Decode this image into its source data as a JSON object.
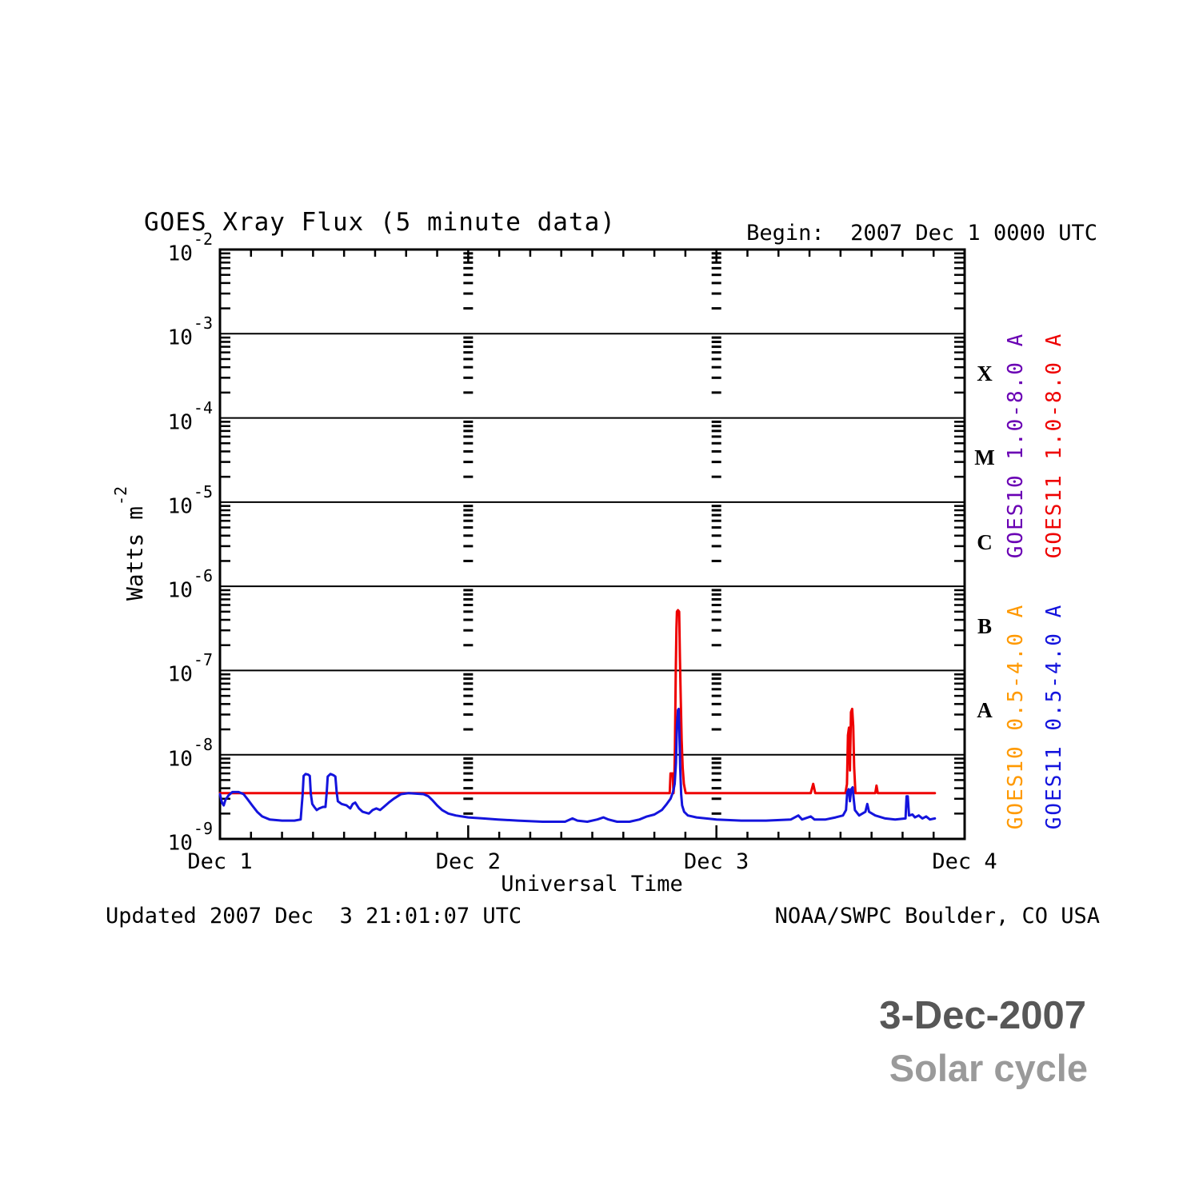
{
  "chart": {
    "title": "GOES Xray Flux (5 minute data)",
    "begin_label": "Begin:  2007 Dec 1 0000 UTC",
    "footer_left": "Updated 2007 Dec  3 21:01:07 UTC",
    "footer_right": "NOAA/SWPC Boulder, CO USA",
    "xlabel": "Universal Time",
    "ylabel_base": "Watts m",
    "ylabel_exp": "-2",
    "y_ticks": [
      {
        "base": "10",
        "exp": "-2"
      },
      {
        "base": "10",
        "exp": "-3"
      },
      {
        "base": "10",
        "exp": "-4"
      },
      {
        "base": "10",
        "exp": "-5"
      },
      {
        "base": "10",
        "exp": "-6"
      },
      {
        "base": "10",
        "exp": "-7"
      },
      {
        "base": "10",
        "exp": "-8"
      },
      {
        "base": "10",
        "exp": "-9"
      }
    ],
    "x_ticks": [
      "Dec 1",
      "Dec 2",
      "Dec 3",
      "Dec 4"
    ],
    "flare_classes": [
      "X",
      "M",
      "C",
      "B",
      "A"
    ],
    "legends": [
      {
        "label": "GOES10 1.0-8.0 A",
        "color": "#6a00b4",
        "group": "top",
        "column": 0
      },
      {
        "label": "GOES11 1.0-8.0 A",
        "color": "#ee0000",
        "group": "top",
        "column": 1
      },
      {
        "label": "GOES10 0.5-4.0 A",
        "color": "#ff9900",
        "group": "bottom",
        "column": 0
      },
      {
        "label": "GOES11 0.5-4.0 A",
        "color": "#1414dd",
        "group": "bottom",
        "column": 1
      }
    ]
  },
  "stamp": {
    "date": "3-Dec-2007",
    "caption": "Solar cycle",
    "date_color": "#575757",
    "caption_color": "#9a9a9a"
  },
  "chart_data": {
    "type": "line",
    "title": "GOES Xray Flux (5 minute data)",
    "xlabel": "Universal Time",
    "ylabel": "Watts m^-2",
    "x_note": "x values are day-of-December-2007, UTC; Dec 1 0000 UTC = 1.0",
    "xlim": [
      1,
      4
    ],
    "ylim": [
      1e-09,
      0.01
    ],
    "y_scale": "log",
    "x_tick_labels": [
      "Dec 1",
      "Dec 2",
      "Dec 3",
      "Dec 4"
    ],
    "grid": {
      "horizontal_decades": true,
      "vertical_dashed_at_days": [
        2,
        3
      ]
    },
    "legend_position": "right, rotated 90deg",
    "series": [
      {
        "name": "GOES11 1.0-8.0 A",
        "color": "#ee0000",
        "points": [
          [
            1.0,
            3.5e-09
          ],
          [
            1.5,
            3.5e-09
          ],
          [
            2.0,
            3.5e-09
          ],
          [
            2.5,
            3.5e-09
          ],
          [
            2.78,
            3.5e-09
          ],
          [
            2.812,
            3.5e-09
          ],
          [
            2.815,
            6e-09
          ],
          [
            2.824,
            6e-09
          ],
          [
            2.827,
            3.5e-09
          ],
          [
            2.83,
            4.5e-09
          ],
          [
            2.833,
            1.2e-08
          ],
          [
            2.836,
            9e-08
          ],
          [
            2.839,
            3.2e-07
          ],
          [
            2.841,
            5e-07
          ],
          [
            2.845,
            5.2e-07
          ],
          [
            2.85,
            5e-07
          ],
          [
            2.853,
            1.5e-07
          ],
          [
            2.856,
            5e-08
          ],
          [
            2.86,
            1.5e-08
          ],
          [
            2.864,
            7e-09
          ],
          [
            2.869,
            4.5e-09
          ],
          [
            2.876,
            3.5e-09
          ],
          [
            3.1,
            3.5e-09
          ],
          [
            3.38,
            3.5e-09
          ],
          [
            3.39,
            4.5e-09
          ],
          [
            3.398,
            3.5e-09
          ],
          [
            3.52,
            3.5e-09
          ],
          [
            3.526,
            4.5e-09
          ],
          [
            3.53,
            1.7e-08
          ],
          [
            3.534,
            2.1e-08
          ],
          [
            3.538,
            6.5e-09
          ],
          [
            3.542,
            3.2e-08
          ],
          [
            3.547,
            3.5e-08
          ],
          [
            3.551,
            2.2e-08
          ],
          [
            3.555,
            7e-09
          ],
          [
            3.56,
            3.5e-09
          ],
          [
            3.64,
            3.5e-09
          ],
          [
            3.645,
            4.3e-09
          ],
          [
            3.65,
            3.5e-09
          ],
          [
            3.88,
            3.5e-09
          ]
        ]
      },
      {
        "name": "GOES11 0.5-4.0 A",
        "color": "#1414dd",
        "points": [
          [
            1.0,
            3.4e-09
          ],
          [
            1.008,
            2.7e-09
          ],
          [
            1.015,
            2.5e-09
          ],
          [
            1.022,
            2.9e-09
          ],
          [
            1.035,
            3.3e-09
          ],
          [
            1.05,
            3.6e-09
          ],
          [
            1.075,
            3.6e-09
          ],
          [
            1.095,
            3.4e-09
          ],
          [
            1.11,
            3e-09
          ],
          [
            1.13,
            2.5e-09
          ],
          [
            1.15,
            2.1e-09
          ],
          [
            1.17,
            1.85e-09
          ],
          [
            1.2,
            1.7e-09
          ],
          [
            1.25,
            1.65e-09
          ],
          [
            1.3,
            1.65e-09
          ],
          [
            1.325,
            1.7e-09
          ],
          [
            1.33,
            2.6e-09
          ],
          [
            1.333,
            3.3e-09
          ],
          [
            1.337,
            5.6e-09
          ],
          [
            1.345,
            5.9e-09
          ],
          [
            1.355,
            5.8e-09
          ],
          [
            1.362,
            5.6e-09
          ],
          [
            1.366,
            3.4e-09
          ],
          [
            1.372,
            2.6e-09
          ],
          [
            1.38,
            2.4e-09
          ],
          [
            1.39,
            2.2e-09
          ],
          [
            1.4,
            2.3e-09
          ],
          [
            1.415,
            2.4e-09
          ],
          [
            1.425,
            2.4e-09
          ],
          [
            1.43,
            3.5e-09
          ],
          [
            1.434,
            5.5e-09
          ],
          [
            1.445,
            5.9e-09
          ],
          [
            1.458,
            5.7e-09
          ],
          [
            1.465,
            5.5e-09
          ],
          [
            1.47,
            3.6e-09
          ],
          [
            1.475,
            2.8e-09
          ],
          [
            1.49,
            2.6e-09
          ],
          [
            1.51,
            2.5e-09
          ],
          [
            1.525,
            2.3e-09
          ],
          [
            1.535,
            2.6e-09
          ],
          [
            1.545,
            2.7e-09
          ],
          [
            1.56,
            2.3e-09
          ],
          [
            1.575,
            2.1e-09
          ],
          [
            1.6,
            2e-09
          ],
          [
            1.615,
            2.2e-09
          ],
          [
            1.63,
            2.3e-09
          ],
          [
            1.645,
            2.2e-09
          ],
          [
            1.66,
            2.4e-09
          ],
          [
            1.68,
            2.7e-09
          ],
          [
            1.7,
            3e-09
          ],
          [
            1.715,
            3.2e-09
          ],
          [
            1.73,
            3.4e-09
          ],
          [
            1.76,
            3.5e-09
          ],
          [
            1.79,
            3.45e-09
          ],
          [
            1.82,
            3.4e-09
          ],
          [
            1.84,
            3.2e-09
          ],
          [
            1.855,
            2.9e-09
          ],
          [
            1.875,
            2.5e-09
          ],
          [
            1.895,
            2.2e-09
          ],
          [
            1.92,
            2e-09
          ],
          [
            1.95,
            1.9e-09
          ],
          [
            2.0,
            1.8e-09
          ],
          [
            2.06,
            1.75e-09
          ],
          [
            2.12,
            1.7e-09
          ],
          [
            2.2,
            1.65e-09
          ],
          [
            2.3,
            1.6e-09
          ],
          [
            2.39,
            1.6e-09
          ],
          [
            2.42,
            1.75e-09
          ],
          [
            2.44,
            1.65e-09
          ],
          [
            2.48,
            1.6e-09
          ],
          [
            2.52,
            1.7e-09
          ],
          [
            2.545,
            1.8e-09
          ],
          [
            2.565,
            1.7e-09
          ],
          [
            2.6,
            1.6e-09
          ],
          [
            2.65,
            1.6e-09
          ],
          [
            2.69,
            1.7e-09
          ],
          [
            2.72,
            1.85e-09
          ],
          [
            2.75,
            1.95e-09
          ],
          [
            2.78,
            2.2e-09
          ],
          [
            2.8,
            2.6e-09
          ],
          [
            2.815,
            3e-09
          ],
          [
            2.825,
            3.6e-09
          ],
          [
            2.832,
            4.5e-09
          ],
          [
            2.837,
            8e-09
          ],
          [
            2.841,
            2.2e-08
          ],
          [
            2.845,
            3.4e-08
          ],
          [
            2.848,
            3.5e-08
          ],
          [
            2.851,
            1.8e-08
          ],
          [
            2.854,
            7e-09
          ],
          [
            2.858,
            3.4e-09
          ],
          [
            2.862,
            2.5e-09
          ],
          [
            2.87,
            2.1e-09
          ],
          [
            2.885,
            1.9e-09
          ],
          [
            2.92,
            1.8e-09
          ],
          [
            3.0,
            1.7e-09
          ],
          [
            3.1,
            1.65e-09
          ],
          [
            3.2,
            1.65e-09
          ],
          [
            3.3,
            1.7e-09
          ],
          [
            3.33,
            1.9e-09
          ],
          [
            3.345,
            1.7e-09
          ],
          [
            3.38,
            1.85e-09
          ],
          [
            3.395,
            1.7e-09
          ],
          [
            3.44,
            1.7e-09
          ],
          [
            3.48,
            1.8e-09
          ],
          [
            3.51,
            1.9e-09
          ],
          [
            3.522,
            2.2e-09
          ],
          [
            3.527,
            3.6e-09
          ],
          [
            3.533,
            3.9e-09
          ],
          [
            3.538,
            2.8e-09
          ],
          [
            3.543,
            3.9e-09
          ],
          [
            3.549,
            4.1e-09
          ],
          [
            3.553,
            3e-09
          ],
          [
            3.558,
            2.2e-09
          ],
          [
            3.575,
            1.9e-09
          ],
          [
            3.6,
            2.1e-09
          ],
          [
            3.608,
            2.6e-09
          ],
          [
            3.615,
            2.1e-09
          ],
          [
            3.64,
            1.9e-09
          ],
          [
            3.68,
            1.75e-09
          ],
          [
            3.72,
            1.7e-09
          ],
          [
            3.762,
            1.75e-09
          ],
          [
            3.766,
            3.2e-09
          ],
          [
            3.771,
            3.2e-09
          ],
          [
            3.776,
            1.9e-09
          ],
          [
            3.79,
            1.95e-09
          ],
          [
            3.8,
            1.8e-09
          ],
          [
            3.815,
            1.9e-09
          ],
          [
            3.83,
            1.75e-09
          ],
          [
            3.845,
            1.85e-09
          ],
          [
            3.86,
            1.7e-09
          ],
          [
            3.88,
            1.75e-09
          ]
        ]
      }
    ]
  }
}
